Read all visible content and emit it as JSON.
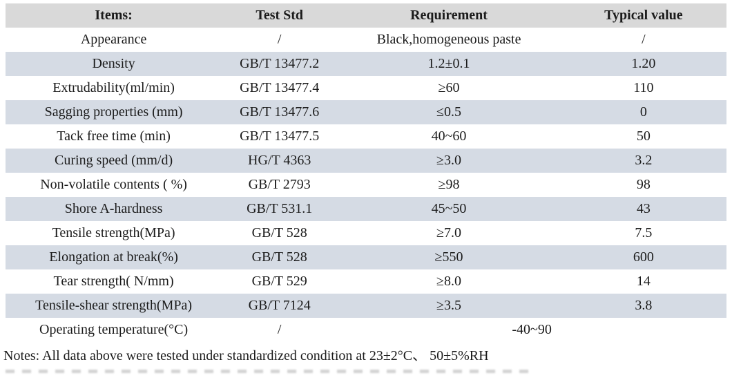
{
  "table": {
    "columns": [
      "Items:",
      "Test Std",
      "Requirement",
      "Typical value"
    ],
    "rows": [
      {
        "item": "Appearance",
        "std": "/",
        "req": "Black,homogeneous paste",
        "typ": "/"
      },
      {
        "item": "Density",
        "std": "GB/T 13477.2",
        "req": "1.2±0.1",
        "typ": "1.20"
      },
      {
        "item": "Extrudability(ml/min)",
        "std": "GB/T 13477.4",
        "req": "≥60",
        "typ": "110"
      },
      {
        "item": "Sagging properties (mm)",
        "std": "GB/T 13477.6",
        "req": "≤0.5",
        "typ": "0"
      },
      {
        "item": "Tack free time (min)",
        "std": "GB/T 13477.5",
        "req": "40~60",
        "typ": "50"
      },
      {
        "item": "Curing speed (mm/d)",
        "std": "HG/T 4363",
        "req": "≥3.0",
        "typ": "3.2"
      },
      {
        "item": "Non-volatile contents ( %)",
        "std": "GB/T 2793",
        "req": "≥98",
        "typ": "98"
      },
      {
        "item": "Shore A-hardness",
        "std": "GB/T 531.1",
        "req": "45~50",
        "typ": "43"
      },
      {
        "item": "Tensile strength(MPa)",
        "std": "GB/T 528",
        "req": "≥7.0",
        "typ": "7.5"
      },
      {
        "item": "Elongation at break(%)",
        "std": "GB/T 528",
        "req": "≥550",
        "typ": "600"
      },
      {
        "item": "Tear strength( N/mm)",
        "std": "GB/T 529",
        "req": "≥8.0",
        "typ": "14"
      },
      {
        "item": "Tensile-shear strength(MPa)",
        "std": "GB/T 7124",
        "req": "≥3.5",
        "typ": "3.8"
      },
      {
        "item": "Operating temperature(°C)",
        "std": "/",
        "req_span": "-40~90"
      }
    ],
    "notes": "Notes: All data above were tested under standardized condition at 23±2°C、 50±5%RH"
  },
  "colors": {
    "header_bg": "#d9d9d9",
    "stripe_bg": "#d5dbe4",
    "text": "#1b1b1b"
  }
}
